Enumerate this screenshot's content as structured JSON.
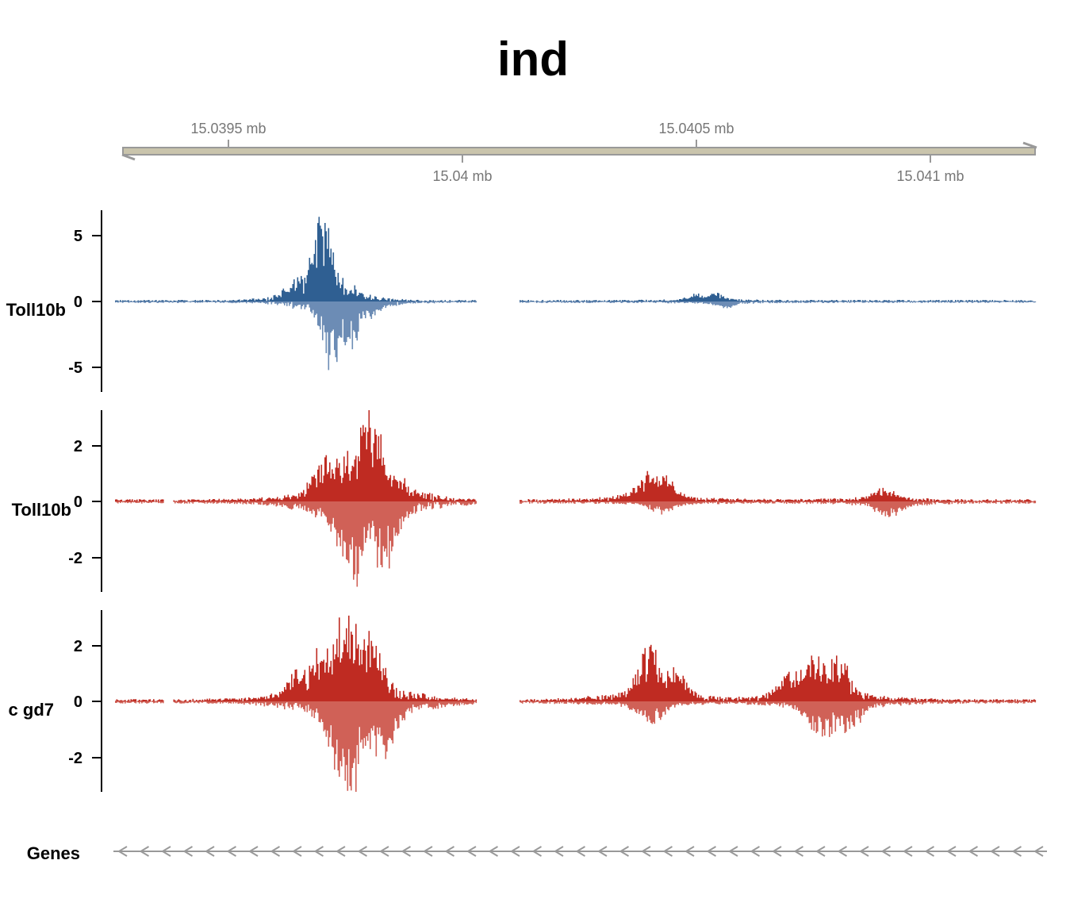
{
  "chart_data": {
    "type": "bar",
    "title": "ind",
    "colors": {
      "track1": "#2f5f92",
      "track2": "#bf2b22",
      "track3": "#bf2b22",
      "axis_bar": "#c9c4ac",
      "axis_line": "#999999",
      "genes": "#999999"
    },
    "genome_axis": {
      "range_mb": [
        15.03927,
        15.04123
      ],
      "ticks_top": [
        {
          "value": 15.0395,
          "label": "15.0395 mb"
        },
        {
          "value": 15.0405,
          "label": "15.0405 mb"
        }
      ],
      "ticks_bottom": [
        {
          "value": 15.04,
          "label": "15.04 mb"
        },
        {
          "value": 15.041,
          "label": "15.041 mb"
        }
      ]
    },
    "tracks": [
      {
        "id": "track1",
        "name": "Toll10b",
        "ylim": [
          -6.8,
          6.8
        ],
        "yticks": [
          {
            "value": 5,
            "label": "5"
          },
          {
            "value": 0,
            "label": "0"
          },
          {
            "value": -5,
            "label": "-5"
          }
        ],
        "peaks_pos": [
          {
            "mb": 15.0397,
            "height": 6.8
          },
          {
            "mb": 15.03969,
            "height": 4.0
          },
          {
            "mb": 15.03971,
            "height": 3.2
          },
          {
            "mb": 15.03968,
            "height": 2.5
          },
          {
            "mb": 15.03972,
            "height": 2.0
          },
          {
            "mb": 15.03966,
            "height": 1.4
          },
          {
            "mb": 15.03974,
            "height": 1.0
          },
          {
            "mb": 15.03964,
            "height": 0.8
          },
          {
            "mb": 15.03976,
            "height": 0.6
          },
          {
            "mb": 15.04054,
            "height": 0.6
          },
          {
            "mb": 15.0405,
            "height": 0.45
          }
        ],
        "peaks_neg": [
          {
            "mb": 15.03972,
            "height": 4.9
          },
          {
            "mb": 15.03973,
            "height": 3.4
          },
          {
            "mb": 15.03974,
            "height": 3.6
          },
          {
            "mb": 15.03976,
            "height": 3.5
          },
          {
            "mb": 15.03971,
            "height": 2.5
          },
          {
            "mb": 15.03977,
            "height": 1.7
          },
          {
            "mb": 15.0398,
            "height": 1.0
          },
          {
            "mb": 15.04056,
            "height": 0.5
          }
        ]
      },
      {
        "id": "track2",
        "name": "Toll10b",
        "ylim": [
          -3.2,
          3.2
        ],
        "yticks": [
          {
            "value": 2,
            "label": "2"
          },
          {
            "value": 0,
            "label": "0"
          },
          {
            "value": -2,
            "label": "-2"
          }
        ],
        "peaks_pos": [
          {
            "mb": 15.0398,
            "height": 3.2
          },
          {
            "mb": 15.03972,
            "height": 1.6
          },
          {
            "mb": 15.03974,
            "height": 1.6
          },
          {
            "mb": 15.0397,
            "height": 1.2
          },
          {
            "mb": 15.03976,
            "height": 1.1
          },
          {
            "mb": 15.03978,
            "height": 0.9
          },
          {
            "mb": 15.03982,
            "height": 1.0
          },
          {
            "mb": 15.03985,
            "height": 0.7
          },
          {
            "mb": 15.0404,
            "height": 1.0
          },
          {
            "mb": 15.04043,
            "height": 0.8
          },
          {
            "mb": 15.0409,
            "height": 0.4
          }
        ],
        "peaks_neg": [
          {
            "mb": 15.03976,
            "height": 3.1
          },
          {
            "mb": 15.03983,
            "height": 2.3
          },
          {
            "mb": 15.03974,
            "height": 1.2
          },
          {
            "mb": 15.03985,
            "height": 0.8
          },
          {
            "mb": 15.04042,
            "height": 0.4
          },
          {
            "mb": 15.04091,
            "height": 0.5
          }
        ]
      },
      {
        "id": "track3",
        "name": "c gd7",
        "ylim": [
          -3.2,
          3.2
        ],
        "yticks": [
          {
            "value": 2,
            "label": "2"
          },
          {
            "value": 0,
            "label": "0"
          },
          {
            "value": -2,
            "label": "-2"
          }
        ],
        "peaks_pos": [
          {
            "mb": 15.03975,
            "height": 3.2
          },
          {
            "mb": 15.03976,
            "height": 2.8
          },
          {
            "mb": 15.0398,
            "height": 2.4
          },
          {
            "mb": 15.0397,
            "height": 1.8
          },
          {
            "mb": 15.03972,
            "height": 1.6
          },
          {
            "mb": 15.03978,
            "height": 1.5
          },
          {
            "mb": 15.03965,
            "height": 1.0
          },
          {
            "mb": 15.0404,
            "height": 1.8
          },
          {
            "mb": 15.04045,
            "height": 1.1
          },
          {
            "mb": 15.04075,
            "height": 1.6
          },
          {
            "mb": 15.0408,
            "height": 1.4
          },
          {
            "mb": 15.0407,
            "height": 1.0
          }
        ],
        "peaks_neg": [
          {
            "mb": 15.03976,
            "height": 3.5
          },
          {
            "mb": 15.03974,
            "height": 2.5
          },
          {
            "mb": 15.03983,
            "height": 2.2
          },
          {
            "mb": 15.0398,
            "height": 1.5
          },
          {
            "mb": 15.04077,
            "height": 1.5
          },
          {
            "mb": 15.04082,
            "height": 1.0
          },
          {
            "mb": 15.0404,
            "height": 0.8
          }
        ]
      }
    ],
    "genes_track": {
      "name": "Genes",
      "strand": "minus"
    }
  }
}
